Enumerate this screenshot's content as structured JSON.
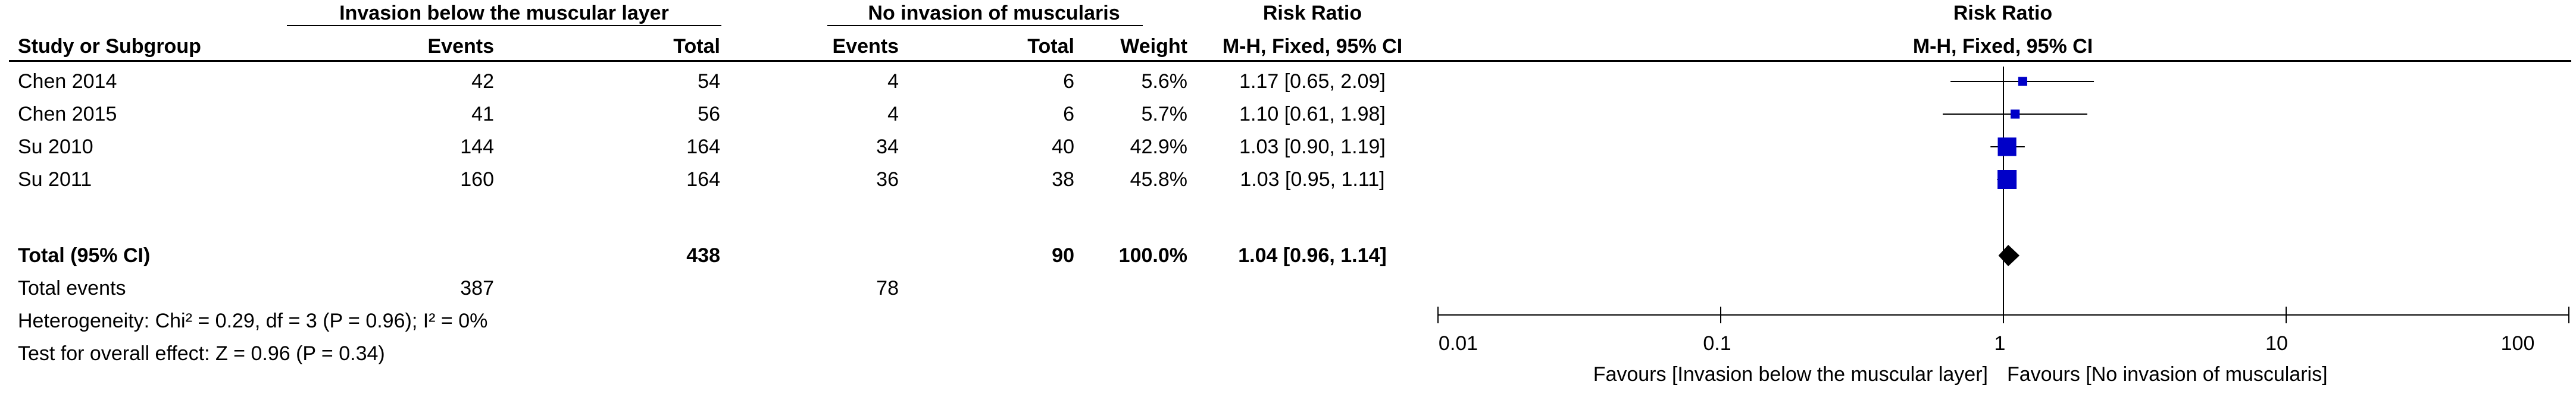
{
  "header": {
    "group1": "Invasion below the muscular layer",
    "group2": "No invasion of muscularis",
    "rr_title": "Risk Ratio",
    "rr_method": "M-H, Fixed, 95% CI",
    "plot_title": "Risk Ratio",
    "plot_method": "M-H, Fixed, 95% CI",
    "study": "Study or Subgroup",
    "events1": "Events",
    "total1": "Total",
    "events2": "Events",
    "total2": "Total",
    "weight": "Weight"
  },
  "studies": [
    {
      "name": "Chen 2014",
      "e1": "42",
      "t1": "54",
      "e2": "4",
      "t2": "6",
      "weight": "5.6%",
      "rr": "1.17 [0.65, 2.09]"
    },
    {
      "name": "Chen 2015",
      "e1": "41",
      "t1": "56",
      "e2": "4",
      "t2": "6",
      "weight": "5.7%",
      "rr": "1.10 [0.61, 1.98]"
    },
    {
      "name": "Su 2010",
      "e1": "144",
      "t1": "164",
      "e2": "34",
      "t2": "40",
      "weight": "42.9%",
      "rr": "1.03 [0.90, 1.19]"
    },
    {
      "name": "Su 2011",
      "e1": "160",
      "t1": "164",
      "e2": "36",
      "t2": "38",
      "weight": "45.8%",
      "rr": "1.03 [0.95, 1.11]"
    }
  ],
  "total": {
    "name": "Total (95% CI)",
    "t1": "438",
    "t2": "90",
    "weight": "100.0%",
    "rr": "1.04 [0.96, 1.14]"
  },
  "total_events": {
    "label": "Total events",
    "e1": "387",
    "e2": "78"
  },
  "heterogeneity": "Heterogeneity: Chi² = 0.29, df = 3 (P = 0.96); I² = 0%",
  "overall_effect": "Test for overall effect: Z = 0.96 (P = 0.34)",
  "axis": {
    "ticks": [
      "0.01",
      "0.1",
      "1",
      "10",
      "100"
    ],
    "favours_left": "Favours [Invasion below the muscular layer]",
    "favours_right": "Favours [No invasion of muscularis]"
  },
  "chart_data": {
    "type": "forest",
    "scale": "log",
    "xlim": [
      0.01,
      100
    ],
    "null_line": 1,
    "studies": [
      {
        "name": "Chen 2014",
        "rr": 1.17,
        "lo": 0.65,
        "hi": 2.09,
        "weight": 5.6
      },
      {
        "name": "Chen 2015",
        "rr": 1.1,
        "lo": 0.61,
        "hi": 1.98,
        "weight": 5.7
      },
      {
        "name": "Su 2010",
        "rr": 1.03,
        "lo": 0.9,
        "hi": 1.19,
        "weight": 42.9
      },
      {
        "name": "Su 2011",
        "rr": 1.03,
        "lo": 0.95,
        "hi": 1.11,
        "weight": 45.8
      }
    ],
    "pooled": {
      "name": "Total (95% CI)",
      "rr": 1.04,
      "lo": 0.96,
      "hi": 1.14
    },
    "marker_color": "#0000c8",
    "diamond_color": "#000000"
  }
}
